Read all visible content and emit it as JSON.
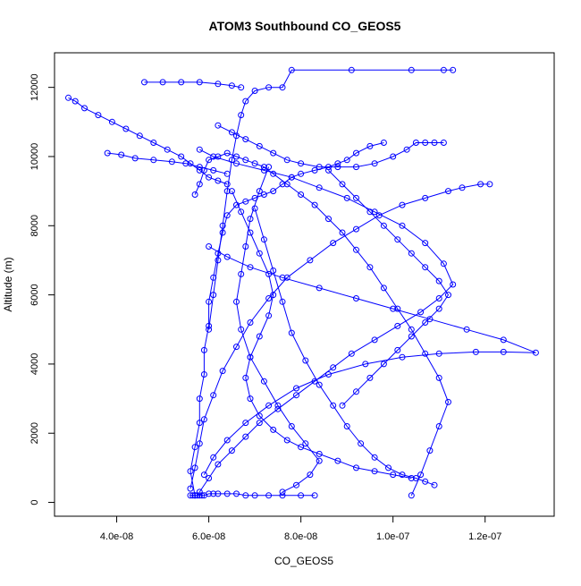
{
  "chart_data": {
    "type": "scatter",
    "title": "ATOM3 Southbound CO_GEOS5",
    "xlabel": "CO_GEOS5",
    "ylabel": "Altitude (m)",
    "xlim": [
      2.65e-08,
      1.35e-07
    ],
    "ylim": [
      -400,
      13000
    ],
    "x_ticks": [
      4e-08,
      6e-08,
      8e-08,
      1e-07,
      1.2e-07
    ],
    "x_tick_labels": [
      "4.0e-08",
      "6.0e-08",
      "8.0e-08",
      "1.0e-07",
      "1.2e-07"
    ],
    "y_ticks": [
      0,
      2000,
      4000,
      6000,
      8000,
      10000,
      12000
    ],
    "y_tick_labels": [
      "0",
      "2000",
      "4000",
      "6000",
      "8000",
      "10000",
      "12000"
    ],
    "grid": false,
    "legend": "none",
    "color": "#0000ff",
    "marker": "open-circle-with-connecting-line",
    "series": [
      {
        "x": [
          5.7e-08,
          5.6e-08,
          5.7e-08,
          5.8e-08,
          5.8e-08,
          5.9e-08,
          5.9e-08,
          6e-08,
          6e-08,
          6.1e-08,
          6.2e-08,
          6.3e-08,
          6.4e-08,
          6.6e-08,
          6.8e-08,
          7e-08,
          7.2e-08,
          7.4e-08,
          7.6e-08,
          7.8e-08,
          8e-08,
          8.3e-08,
          8.6e-08,
          8.8e-08,
          9e-08,
          9.2e-08,
          9.5e-08,
          9.8e-08
        ],
        "y": [
          200,
          900,
          1600,
          2300,
          3000,
          3700,
          4400,
          5100,
          5800,
          6500,
          7200,
          7800,
          8300,
          8600,
          8700,
          8800,
          8900,
          9000,
          9200,
          9400,
          9500,
          9600,
          9700,
          9800,
          9900,
          10100,
          10300,
          10400
        ]
      },
      {
        "x": [
          1.04e-07,
          1.06e-07,
          1.08e-07,
          1.1e-07,
          1.12e-07,
          1.1e-07,
          1.07e-07,
          1.04e-07,
          1.01e-07,
          9.8e-08,
          9.5e-08,
          9.2e-08,
          8.9e-08,
          8.6e-08,
          8.3e-08,
          8e-08,
          7.7e-08,
          7.4e-08,
          7.2e-08,
          7e-08,
          6.8e-08,
          6.6e-08,
          6.4e-08,
          6.2e-08,
          6e-08,
          5.9e-08,
          5.8e-08,
          5.7e-08
        ],
        "y": [
          200,
          800,
          1500,
          2200,
          2900,
          3600,
          4300,
          5000,
          5600,
          6200,
          6800,
          7300,
          7800,
          8200,
          8600,
          8900,
          9200,
          9500,
          9700,
          9800,
          9900,
          10000,
          10100,
          10000,
          9900,
          9600,
          9200,
          8900
        ]
      },
      {
        "x": [
          5.8e-08,
          6e-08,
          6.2e-08,
          6.5e-08,
          6.8e-08,
          7.1e-08,
          7.5e-08,
          7.9e-08,
          8.3e-08,
          8.7e-08,
          9.1e-08,
          9.6e-08,
          1.01e-07,
          1.06e-07,
          1.1e-07,
          1.13e-07,
          1.11e-07,
          1.07e-07,
          1.02e-07,
          9.6e-08,
          9e-08,
          8.4e-08,
          7.8e-08,
          7.2e-08,
          6.6e-08,
          6.1e-08,
          5.8e-08
        ],
        "y": [
          300,
          700,
          1100,
          1500,
          1900,
          2300,
          2700,
          3100,
          3500,
          3900,
          4300,
          4700,
          5100,
          5500,
          5900,
          6300,
          6900,
          7500,
          8000,
          8400,
          8800,
          9100,
          9400,
          9600,
          9800,
          10000,
          10200
        ]
      },
      {
        "x": [
          5.9e-08,
          6.1e-08,
          6.4e-08,
          6.8e-08,
          7.3e-08,
          7.9e-08,
          8.6e-08,
          9.4e-08,
          1.02e-07,
          1.1e-07,
          1.18e-07,
          1.24e-07,
          1.31e-07,
          1.24e-07,
          1.16e-07,
          1.08e-07,
          1e-07,
          9.2e-08,
          8.4e-08,
          7.6e-08,
          6.9e-08,
          6.4e-08,
          6e-08
        ],
        "y": [
          800,
          1300,
          1800,
          2300,
          2800,
          3300,
          3700,
          4000,
          4200,
          4300,
          4350,
          4350,
          4330,
          4700,
          5000,
          5300,
          5600,
          5900,
          6200,
          6500,
          6800,
          7100,
          7400
        ]
      },
      {
        "x": [
          5.6e-08,
          5.7e-08,
          5.8e-08,
          5.9e-08,
          6.1e-08,
          6.3e-08,
          6.6e-08,
          6.9e-08,
          7.3e-08,
          7.7e-08,
          8.2e-08,
          8.7e-08,
          9.2e-08,
          9.7e-08,
          1.02e-07,
          1.07e-07,
          1.12e-07,
          1.15e-07,
          1.19e-07,
          1.21e-07
        ],
        "y": [
          400,
          1000,
          1700,
          2400,
          3100,
          3800,
          4500,
          5200,
          5900,
          6500,
          7000,
          7500,
          7900,
          8300,
          8600,
          8800,
          9000,
          9100,
          9200,
          9200
        ]
      },
      {
        "x": [
          6e-08,
          6.1e-08,
          6.2e-08,
          6.3e-08,
          6.4e-08,
          6.5e-08,
          6.6e-08,
          6.7e-08,
          6.8e-08,
          7e-08,
          7.3e-08,
          7.6e-08,
          7.8e-08,
          9.1e-08,
          1.04e-07,
          1.11e-07,
          1.13e-07
        ],
        "y": [
          5000,
          6000,
          7000,
          8000,
          9000,
          9900,
          10600,
          11200,
          11600,
          11900,
          12000,
          12000,
          12500,
          12500,
          12500,
          12500,
          12500
        ]
      },
      {
        "x": [
          2.95e-08,
          3.1e-08,
          3.3e-08,
          3.6e-08,
          3.9e-08,
          4.2e-08,
          4.5e-08,
          4.8e-08,
          5.1e-08,
          5.4e-08,
          5.6e-08,
          5.8e-08,
          6e-08,
          6.2e-08,
          6.4e-08
        ],
        "y": [
          11700,
          11600,
          11400,
          11200,
          11000,
          10800,
          10600,
          10400,
          10200,
          10000,
          9800,
          9600,
          9400,
          9300,
          9200
        ]
      },
      {
        "x": [
          3.8e-08,
          4.1e-08,
          4.4e-08,
          4.8e-08,
          5.2e-08,
          5.5e-08,
          5.8e-08,
          6.1e-08,
          6.4e-08
        ],
        "y": [
          10100,
          10050,
          9950,
          9900,
          9850,
          9800,
          9700,
          9600,
          9500
        ]
      },
      {
        "x": [
          4.6e-08,
          5e-08,
          5.4e-08,
          5.8e-08,
          6.2e-08,
          6.5e-08,
          6.7e-08
        ],
        "y": [
          12150,
          12150,
          12150,
          12150,
          12100,
          12050,
          12000
        ]
      },
      {
        "x": [
          5.6e-08,
          5.65e-08,
          5.7e-08,
          5.75e-08,
          5.8e-08,
          5.85e-08,
          5.9e-08,
          6e-08,
          6.1e-08,
          6.2e-08,
          6.4e-08,
          6.6e-08,
          6.8e-08,
          7e-08,
          7.3e-08,
          7.6e-08,
          8e-08,
          8.3e-08
        ],
        "y": [
          200,
          200,
          200,
          200,
          200,
          200,
          200,
          250,
          250,
          250,
          250,
          250,
          200,
          200,
          200,
          200,
          200,
          200
        ]
      },
      {
        "x": [
          6.2e-08,
          6.5e-08,
          6.8e-08,
          7.1e-08,
          7.4e-08,
          7.7e-08,
          8e-08,
          8.4e-08,
          8.8e-08,
          9.2e-08,
          9.6e-08,
          1e-07,
          1.03e-07,
          1.05e-07,
          1.07e-07,
          1.09e-07,
          1.11e-07
        ],
        "y": [
          10900,
          10700,
          10500,
          10300,
          10100,
          9900,
          9800,
          9700,
          9700,
          9700,
          9800,
          10000,
          10200,
          10400,
          10400,
          10400,
          10400
        ]
      },
      {
        "x": [
          7e-08,
          7.2e-08,
          7.4e-08,
          7.6e-08,
          7.8e-08,
          8.1e-08,
          8.4e-08,
          8.7e-08,
          9e-08,
          9.3e-08,
          9.6e-08,
          9.9e-08,
          1.02e-07,
          1.05e-07,
          1.07e-07,
          1.09e-07
        ],
        "y": [
          8500,
          7600,
          6700,
          5800,
          4900,
          4100,
          3400,
          2800,
          2200,
          1700,
          1300,
          1000,
          800,
          700,
          600,
          500
        ]
      },
      {
        "x": [
          7.3e-08,
          7.1e-08,
          6.9e-08,
          6.8e-08,
          6.7e-08,
          6.6e-08,
          6.7e-08,
          6.9e-08,
          7.2e-08,
          7.5e-08,
          7.8e-08,
          8.1e-08,
          8.4e-08,
          8.2e-08,
          7.9e-08,
          7.6e-08
        ],
        "y": [
          9700,
          9000,
          8200,
          7400,
          6600,
          5800,
          5000,
          4200,
          3500,
          2800,
          2200,
          1700,
          1200,
          800,
          500,
          300
        ]
      },
      {
        "x": [
          6.5e-08,
          6.7e-08,
          6.9e-08,
          7.1e-08,
          7.3e-08,
          7.4e-08,
          7.3e-08,
          7.1e-08,
          6.9e-08,
          6.8e-08,
          6.9e-08,
          7.1e-08,
          7.4e-08,
          7.7e-08,
          8e-08,
          8.4e-08,
          8.8e-08,
          9.2e-08,
          9.6e-08,
          1e-07,
          1.04e-07
        ],
        "y": [
          9000,
          8400,
          7800,
          7200,
          6600,
          6000,
          5400,
          4800,
          4200,
          3600,
          3000,
          2500,
          2100,
          1800,
          1600,
          1400,
          1200,
          1000,
          900,
          800,
          700
        ]
      },
      {
        "x": [
          8.6e-08,
          8.9e-08,
          9.2e-08,
          9.5e-08,
          9.8e-08,
          1.01e-07,
          1.04e-07,
          1.07e-07,
          1.1e-07,
          1.12e-07,
          1.1e-07,
          1.07e-07,
          1.04e-07,
          1.01e-07,
          9.8e-08,
          9.5e-08,
          9.2e-08,
          8.9e-08
        ],
        "y": [
          9600,
          9200,
          8800,
          8400,
          8000,
          7600,
          7200,
          6800,
          6400,
          6000,
          5600,
          5200,
          4800,
          4400,
          4000,
          3600,
          3200,
          2800
        ]
      }
    ]
  }
}
